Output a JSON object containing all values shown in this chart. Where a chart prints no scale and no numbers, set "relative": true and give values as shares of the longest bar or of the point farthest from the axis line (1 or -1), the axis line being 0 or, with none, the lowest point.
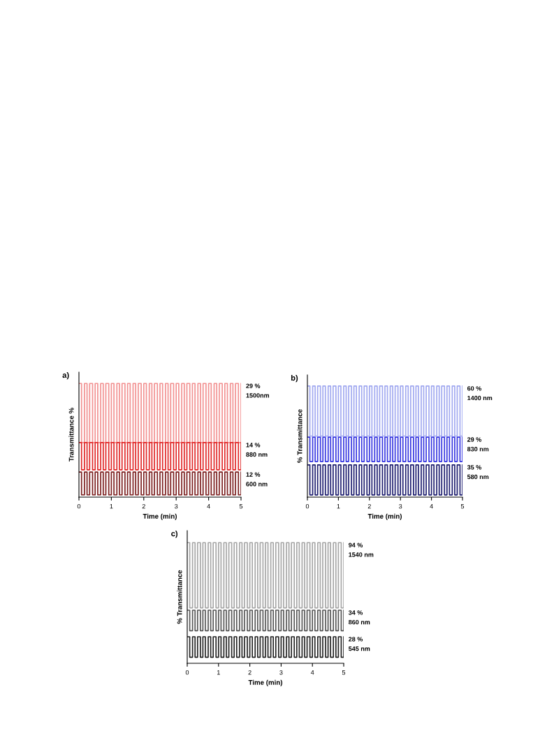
{
  "chart_data": [
    {
      "type": "step",
      "title": "a)",
      "xlabel": "Time (min)",
      "ylabel": "Transmittance %",
      "relative": true,
      "tick_labels": "x",
      "xlim": [
        0,
        5
      ],
      "xticks": [
        0,
        1,
        2,
        3,
        4,
        5
      ],
      "x": [
        0,
        0.08,
        0.17,
        0.25,
        0.33,
        0.42,
        0.5,
        0.58,
        0.67,
        0.75,
        0.83,
        0.92,
        1,
        1.08,
        1.17,
        1.25,
        1.33,
        1.42,
        1.5,
        1.58,
        1.67,
        1.75,
        1.83,
        1.92,
        2,
        2.08,
        2.17,
        2.25,
        2.33,
        2.42,
        2.5,
        2.58,
        2.67,
        2.75,
        2.83,
        2.92,
        3,
        3.08,
        3.17,
        3.25,
        3.33,
        3.42,
        3.5,
        3.58,
        3.67,
        3.75,
        3.83,
        3.92,
        4,
        4.08,
        4.17,
        4.25,
        4.33,
        4.42,
        4.5,
        4.58,
        4.67,
        4.75,
        4.83,
        4.92,
        5
      ],
      "series": [
        {
          "name": "29 %\n1500nm",
          "color": "#f29090",
          "values": [
            1,
            0.48,
            1,
            0.48,
            1,
            0.48,
            1,
            0.48,
            1,
            0.48,
            1,
            0.48,
            1,
            0.48,
            1,
            0.48,
            1,
            0.48,
            1,
            0.48,
            1,
            0.48,
            1,
            0.48,
            1,
            0.48,
            1,
            0.48,
            1,
            0.48,
            1,
            0.48,
            1,
            0.48,
            1,
            0.48,
            1,
            0.48,
            1,
            0.48,
            1,
            0.48,
            1,
            0.48,
            1,
            0.48,
            1,
            0.48,
            1,
            0.48,
            1,
            0.48,
            1,
            0.48,
            1,
            0.48,
            1,
            0.48,
            1,
            0.48,
            1
          ]
        },
        {
          "name": "14 %\n880 nm",
          "color": "#e02424",
          "values": [
            0.48,
            0.24,
            0.48,
            0.24,
            0.48,
            0.24,
            0.48,
            0.24,
            0.48,
            0.24,
            0.48,
            0.24,
            0.48,
            0.24,
            0.48,
            0.24,
            0.48,
            0.24,
            0.48,
            0.24,
            0.48,
            0.24,
            0.48,
            0.24,
            0.48,
            0.24,
            0.48,
            0.24,
            0.48,
            0.24,
            0.48,
            0.24,
            0.48,
            0.24,
            0.48,
            0.24,
            0.48,
            0.24,
            0.48,
            0.24,
            0.48,
            0.24,
            0.48,
            0.24,
            0.48,
            0.24,
            0.48,
            0.24,
            0.48,
            0.24,
            0.48,
            0.24,
            0.48,
            0.24,
            0.48,
            0.24,
            0.48,
            0.24,
            0.48,
            0.24,
            0.48
          ]
        },
        {
          "name": "12 %\n600 nm",
          "color": "#7a1c1c",
          "values": [
            0.22,
            0.02,
            0.22,
            0.02,
            0.22,
            0.02,
            0.22,
            0.02,
            0.22,
            0.02,
            0.22,
            0.02,
            0.22,
            0.02,
            0.22,
            0.02,
            0.22,
            0.02,
            0.22,
            0.02,
            0.22,
            0.02,
            0.22,
            0.02,
            0.22,
            0.02,
            0.22,
            0.02,
            0.22,
            0.02,
            0.22,
            0.02,
            0.22,
            0.02,
            0.22,
            0.02,
            0.22,
            0.02,
            0.22,
            0.02,
            0.22,
            0.02,
            0.22,
            0.02,
            0.22,
            0.02,
            0.22,
            0.02,
            0.22,
            0.02,
            0.22,
            0.02,
            0.22,
            0.02,
            0.22,
            0.02,
            0.22,
            0.02,
            0.22,
            0.02,
            0.22
          ]
        }
      ]
    },
    {
      "type": "step",
      "title": "b)",
      "xlabel": "Time (min)",
      "ylabel": "% Transmittance",
      "relative": true,
      "tick_labels": "x",
      "xlim": [
        0,
        5
      ],
      "xticks": [
        0,
        1,
        2,
        3,
        4,
        5
      ],
      "x": [
        0,
        0.08,
        0.17,
        0.25,
        0.33,
        0.42,
        0.5,
        0.58,
        0.67,
        0.75,
        0.83,
        0.92,
        1,
        1.08,
        1.17,
        1.25,
        1.33,
        1.42,
        1.5,
        1.58,
        1.67,
        1.75,
        1.83,
        1.92,
        2,
        2.08,
        2.17,
        2.25,
        2.33,
        2.42,
        2.5,
        2.58,
        2.67,
        2.75,
        2.83,
        2.92,
        3,
        3.08,
        3.17,
        3.25,
        3.33,
        3.42,
        3.5,
        3.58,
        3.67,
        3.75,
        3.83,
        3.92,
        4,
        4.08,
        4.17,
        4.25,
        4.33,
        4.42,
        4.5,
        4.58,
        4.67,
        4.75,
        4.83,
        4.92,
        5
      ],
      "series": [
        {
          "name": "60 %\n1400 nm",
          "color": "#a0a8f0",
          "values": [
            1,
            0.55,
            1,
            0.55,
            1,
            0.55,
            1,
            0.55,
            1,
            0.55,
            1,
            0.55,
            1,
            0.55,
            1,
            0.55,
            1,
            0.55,
            1,
            0.55,
            1,
            0.55,
            1,
            0.55,
            1,
            0.55,
            1,
            0.55,
            1,
            0.55,
            1,
            0.55,
            1,
            0.55,
            1,
            0.55,
            1,
            0.55,
            1,
            0.55,
            1,
            0.55,
            1,
            0.55,
            1,
            0.55,
            1,
            0.55,
            1,
            0.55,
            1,
            0.55,
            1,
            0.55,
            1,
            0.55,
            1,
            0.55,
            1,
            0.55,
            1
          ]
        },
        {
          "name": "29 %\n830 nm",
          "color": "#3434e0",
          "values": [
            0.54,
            0.32,
            0.54,
            0.32,
            0.54,
            0.32,
            0.54,
            0.32,
            0.54,
            0.32,
            0.54,
            0.32,
            0.54,
            0.32,
            0.54,
            0.32,
            0.54,
            0.32,
            0.54,
            0.32,
            0.54,
            0.32,
            0.54,
            0.32,
            0.54,
            0.32,
            0.54,
            0.32,
            0.54,
            0.32,
            0.54,
            0.32,
            0.54,
            0.32,
            0.54,
            0.32,
            0.54,
            0.32,
            0.54,
            0.32,
            0.54,
            0.32,
            0.54,
            0.32,
            0.54,
            0.32,
            0.54,
            0.32,
            0.54,
            0.32,
            0.54,
            0.32,
            0.54,
            0.32,
            0.54,
            0.32,
            0.54,
            0.32,
            0.54,
            0.32,
            0.54
          ]
        },
        {
          "name": "35 %\n580 nm",
          "color": "#1c1c6e",
          "values": [
            0.29,
            0.02,
            0.29,
            0.02,
            0.29,
            0.02,
            0.29,
            0.02,
            0.29,
            0.02,
            0.29,
            0.02,
            0.29,
            0.02,
            0.29,
            0.02,
            0.29,
            0.02,
            0.29,
            0.02,
            0.29,
            0.02,
            0.29,
            0.02,
            0.29,
            0.02,
            0.29,
            0.02,
            0.29,
            0.02,
            0.29,
            0.02,
            0.29,
            0.02,
            0.29,
            0.02,
            0.29,
            0.02,
            0.29,
            0.02,
            0.29,
            0.02,
            0.29,
            0.02,
            0.29,
            0.02,
            0.29,
            0.02,
            0.29,
            0.02,
            0.29,
            0.02,
            0.29,
            0.02,
            0.29,
            0.02,
            0.29,
            0.02,
            0.29,
            0.02,
            0.29
          ]
        }
      ]
    },
    {
      "type": "step",
      "title": "c)",
      "xlabel": "Time (min)",
      "ylabel": "% Transmittance",
      "relative": true,
      "tick_labels": "x",
      "xlim": [
        0,
        5
      ],
      "xticks": [
        0,
        1,
        2,
        3,
        4,
        5
      ],
      "x": [
        0,
        0.08,
        0.17,
        0.25,
        0.33,
        0.42,
        0.5,
        0.58,
        0.67,
        0.75,
        0.83,
        0.92,
        1,
        1.08,
        1.17,
        1.25,
        1.33,
        1.42,
        1.5,
        1.58,
        1.67,
        1.75,
        1.83,
        1.92,
        2,
        2.08,
        2.17,
        2.25,
        2.33,
        2.42,
        2.5,
        2.58,
        2.67,
        2.75,
        2.83,
        2.92,
        3,
        3.08,
        3.17,
        3.25,
        3.33,
        3.42,
        3.5,
        3.58,
        3.67,
        3.75,
        3.83,
        3.92,
        4,
        4.08,
        4.17,
        4.25,
        4.33,
        4.42,
        4.5,
        4.58,
        4.67,
        4.75,
        4.83,
        4.92,
        5
      ],
      "series": [
        {
          "name": "94 %\n1540 nm",
          "color": "#a6a6a6",
          "values": [
            1,
            0.46,
            1,
            0.46,
            1,
            0.46,
            1,
            0.46,
            1,
            0.46,
            1,
            0.46,
            1,
            0.46,
            1,
            0.46,
            1,
            0.46,
            1,
            0.46,
            1,
            0.46,
            1,
            0.46,
            1,
            0.46,
            1,
            0.46,
            1,
            0.46,
            1,
            0.46,
            1,
            0.46,
            1,
            0.46,
            1,
            0.46,
            1,
            0.46,
            1,
            0.46,
            1,
            0.46,
            1,
            0.46,
            1,
            0.46,
            1,
            0.46,
            1,
            0.46,
            1,
            0.46,
            1,
            0.46,
            1,
            0.46,
            1,
            0.46,
            1
          ]
        },
        {
          "name": "34 %\n860 nm",
          "color": "#555555",
          "values": [
            0.44,
            0.27,
            0.44,
            0.27,
            0.44,
            0.27,
            0.44,
            0.27,
            0.44,
            0.27,
            0.44,
            0.27,
            0.44,
            0.27,
            0.44,
            0.27,
            0.44,
            0.27,
            0.44,
            0.27,
            0.44,
            0.27,
            0.44,
            0.27,
            0.44,
            0.27,
            0.44,
            0.27,
            0.44,
            0.27,
            0.44,
            0.27,
            0.44,
            0.27,
            0.44,
            0.27,
            0.44,
            0.27,
            0.44,
            0.27,
            0.44,
            0.27,
            0.44,
            0.27,
            0.44,
            0.27,
            0.44,
            0.27,
            0.44,
            0.27,
            0.44,
            0.27,
            0.44,
            0.27,
            0.44,
            0.27,
            0.44,
            0.27,
            0.44,
            0.27,
            0.44
          ]
        },
        {
          "name": "28 %\n545 nm",
          "color": "#222222",
          "values": [
            0.22,
            0.05,
            0.22,
            0.05,
            0.22,
            0.05,
            0.22,
            0.05,
            0.22,
            0.05,
            0.22,
            0.05,
            0.22,
            0.05,
            0.22,
            0.05,
            0.22,
            0.05,
            0.22,
            0.05,
            0.22,
            0.05,
            0.22,
            0.05,
            0.22,
            0.05,
            0.22,
            0.05,
            0.22,
            0.05,
            0.22,
            0.05,
            0.22,
            0.05,
            0.22,
            0.05,
            0.22,
            0.05,
            0.22,
            0.05,
            0.22,
            0.05,
            0.22,
            0.05,
            0.22,
            0.05,
            0.22,
            0.05,
            0.22,
            0.05,
            0.22,
            0.05,
            0.22,
            0.05,
            0.22,
            0.05,
            0.22,
            0.05,
            0.22,
            0.05,
            0.22
          ]
        }
      ]
    }
  ]
}
